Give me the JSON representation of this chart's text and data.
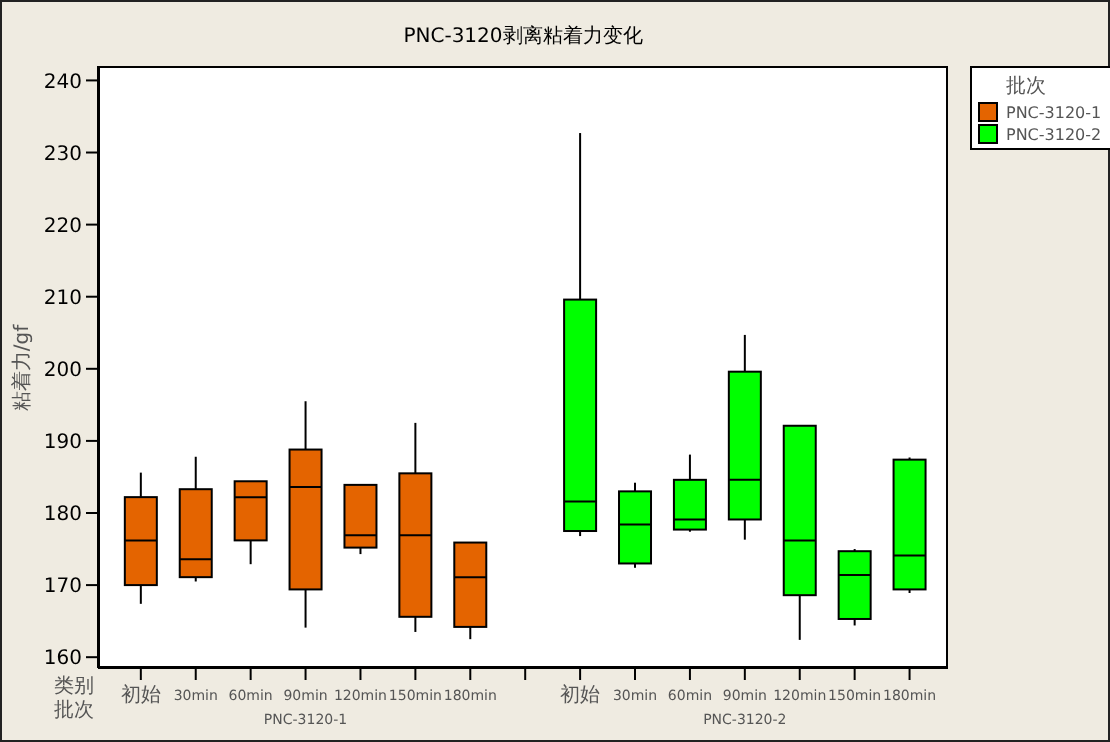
{
  "chart_data": {
    "type": "box",
    "title": "PNC-3120剥离粘着力变化",
    "ylabel": "粘着力/gf",
    "legend_title": "批次",
    "annotations": [
      "类别",
      "批次"
    ],
    "categories": [
      "初始",
      "30min",
      "60min",
      "90min",
      "120min",
      "150min",
      "180min",
      null,
      "初始",
      "30min",
      "60min",
      "90min",
      "120min",
      "150min",
      "180min"
    ],
    "ylim": [
      158.5,
      242
    ],
    "yticks": [
      160,
      170,
      180,
      190,
      200,
      210,
      220,
      230,
      240
    ],
    "legend": "right",
    "series": [
      {
        "name": "PNC-3120-1",
        "color": "#e46400",
        "boxes": [
          {
            "low": 167.4,
            "q1": 170.0,
            "median": 176.2,
            "q3": 182.2,
            "high": 185.6
          },
          {
            "low": 170.5,
            "q1": 171.1,
            "median": 173.6,
            "q3": 183.3,
            "high": 187.8
          },
          {
            "low": 172.9,
            "q1": 176.2,
            "median": 182.2,
            "q3": 184.4,
            "high": 184.4
          },
          {
            "low": 164.1,
            "q1": 169.4,
            "median": 183.6,
            "q3": 188.8,
            "high": 195.5
          },
          {
            "low": 174.3,
            "q1": 175.2,
            "median": 176.9,
            "q3": 183.9,
            "high": 183.9
          },
          {
            "low": 163.5,
            "q1": 165.6,
            "median": 176.9,
            "q3": 185.5,
            "high": 192.5
          },
          {
            "low": 162.5,
            "q1": 164.2,
            "median": 171.1,
            "q3": 175.9,
            "high": 175.9
          },
          null,
          null,
          null,
          null,
          null,
          null,
          null,
          null
        ]
      },
      {
        "name": "PNC-3120-2",
        "color": "#00ff00",
        "boxes": [
          null,
          null,
          null,
          null,
          null,
          null,
          null,
          null,
          {
            "low": 176.8,
            "q1": 177.5,
            "median": 181.6,
            "q3": 209.6,
            "high": 232.7
          },
          {
            "low": 172.4,
            "q1": 173.0,
            "median": 178.4,
            "q3": 183.0,
            "high": 184.2
          },
          {
            "low": 177.4,
            "q1": 177.7,
            "median": 179.1,
            "q3": 184.6,
            "high": 188.1
          },
          {
            "low": 176.3,
            "q1": 179.1,
            "median": 184.6,
            "q3": 199.6,
            "high": 204.7
          },
          {
            "low": 162.4,
            "q1": 168.6,
            "median": 176.2,
            "q3": 192.1,
            "high": 192.1
          },
          {
            "low": 164.4,
            "q1": 165.3,
            "median": 171.4,
            "q3": 174.7,
            "high": 175.0
          },
          {
            "low": 168.9,
            "q1": 169.4,
            "median": 174.1,
            "q3": 187.4,
            "high": 187.7
          }
        ]
      }
    ]
  }
}
